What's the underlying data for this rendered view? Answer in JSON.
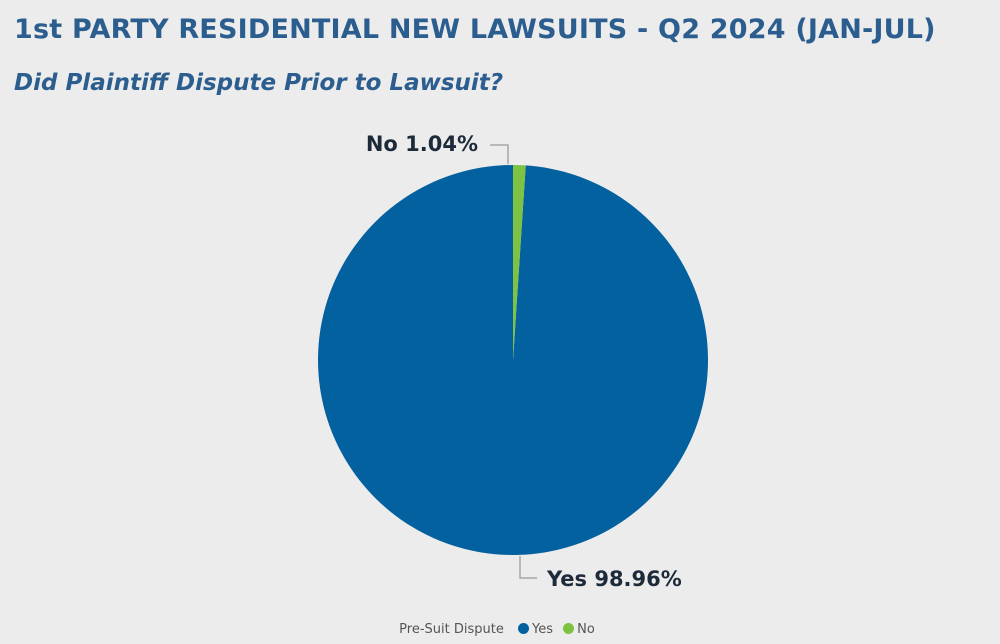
{
  "chart_data": {
    "type": "pie",
    "title": "1st PARTY RESIDENTIAL NEW LAWSUITS - Q2 2024 (JAN-JUL)",
    "subtitle": "Did Plaintiff Dispute Prior to Lawsuit?",
    "legend_title": "Pre-Suit Dispute",
    "legend_position": "bottom-center",
    "categories": [
      "Yes",
      "No"
    ],
    "values": [
      98.96,
      1.04
    ],
    "data_labels": [
      "Yes 98.96%",
      "No 1.04%"
    ],
    "colors": [
      "#04619f",
      "#7dc243"
    ],
    "start_angle_deg": 0,
    "direction": "counterclockwise"
  }
}
